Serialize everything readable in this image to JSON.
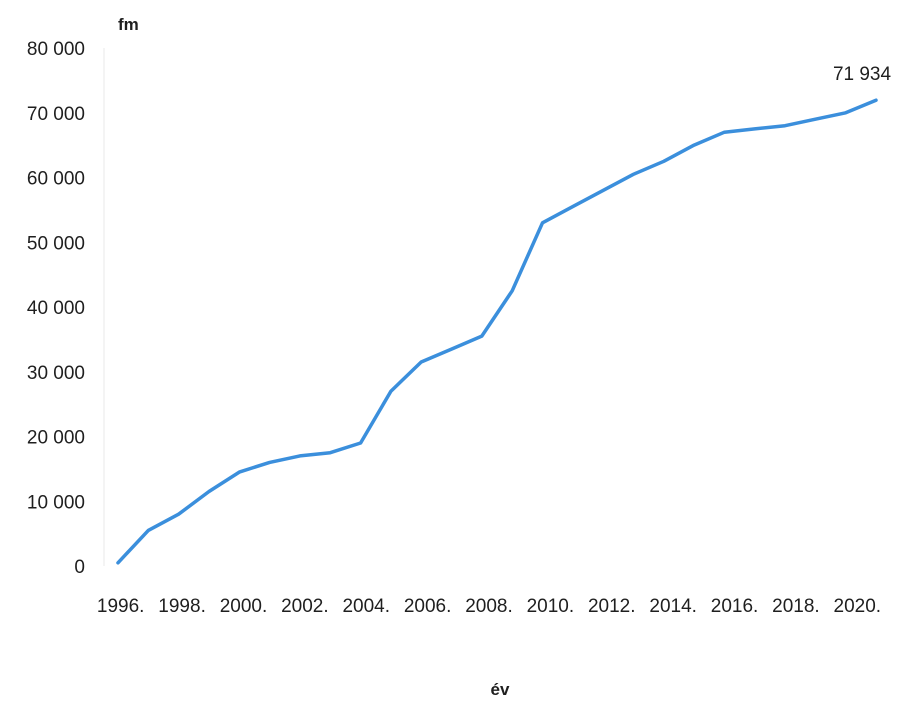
{
  "chart_data": {
    "type": "line",
    "title": "",
    "xlabel": "év",
    "ylabel": "fm",
    "ylim": [
      0,
      80000
    ],
    "yticks": [
      "0",
      "10 000",
      "20 000",
      "30 000",
      "40 000",
      "50 000",
      "60 000",
      "70 000",
      "80 000"
    ],
    "xticks": [
      "1996.",
      "1998.",
      "2000.",
      "2002.",
      "2004.",
      "2006.",
      "2008.",
      "2010.",
      "2012.",
      "2014.",
      "2016.",
      "2018.",
      "2020."
    ],
    "grid": false,
    "legend": "none",
    "line_color": "#3b8fdc",
    "series": [
      {
        "x": [
          1996,
          1997,
          1998,
          1999,
          2000,
          2001,
          2002,
          2003,
          2004,
          2005,
          2006,
          2007,
          2008,
          2009,
          2010,
          2011,
          2012,
          2013,
          2014,
          2015,
          2016,
          2017,
          2018,
          2019,
          2020,
          2021
        ],
        "values": [
          500,
          5500,
          8000,
          11500,
          14500,
          16000,
          17000,
          17500,
          19000,
          27000,
          31500,
          33500,
          35500,
          42500,
          53000,
          55500,
          58000,
          60500,
          62500,
          65000,
          67000,
          67500,
          68000,
          69000,
          70000,
          71934
        ]
      }
    ],
    "annotations": [
      {
        "x": 2021,
        "y": 71934,
        "text": "71 934"
      }
    ]
  }
}
